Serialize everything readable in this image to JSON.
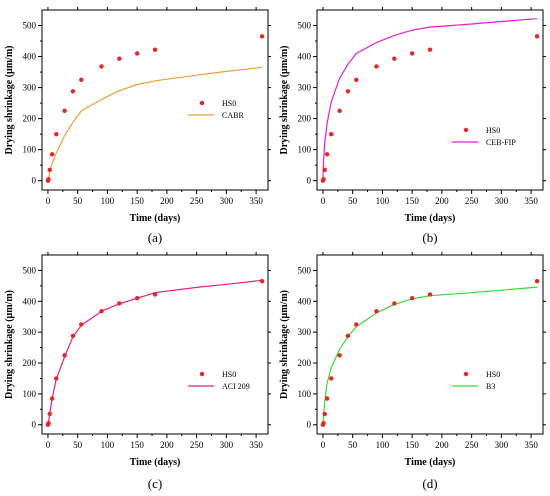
{
  "chart_data": [
    {
      "type": "scatter",
      "panel_label": "(a)",
      "xlabel": "Time (days)",
      "ylabel": "Drying shrinkage (μm/m)",
      "xlim": [
        -10,
        370
      ],
      "ylim": [
        -30,
        550
      ],
      "xticks": [
        0,
        50,
        100,
        150,
        200,
        250,
        300,
        350
      ],
      "yticks": [
        0,
        100,
        200,
        300,
        400,
        500
      ],
      "legend_position": "center-right",
      "series": [
        {
          "name": "HS0",
          "kind": "scatter",
          "color": "#ee2222",
          "x": [
            0,
            1,
            3,
            7,
            14,
            28,
            42,
            56,
            90,
            120,
            150,
            180,
            360
          ],
          "y": [
            0,
            5,
            35,
            85,
            150,
            225,
            288,
            325,
            368,
            393,
            410,
            422,
            465
          ]
        },
        {
          "name": "CABR",
          "kind": "line",
          "color": "#f0a030",
          "x": [
            0,
            3,
            7,
            14,
            28,
            42,
            56,
            90,
            120,
            150,
            180,
            250,
            300,
            360
          ],
          "y": [
            0,
            25,
            55,
            90,
            145,
            188,
            225,
            262,
            290,
            310,
            322,
            340,
            352,
            365
          ]
        }
      ]
    },
    {
      "type": "scatter",
      "panel_label": "(b)",
      "xlabel": "Time (days)",
      "ylabel": "Drying shrinkage (μm/m)",
      "xlim": [
        -10,
        370
      ],
      "ylim": [
        -30,
        550
      ],
      "xticks": [
        0,
        50,
        100,
        150,
        200,
        250,
        300,
        350
      ],
      "yticks": [
        0,
        100,
        200,
        300,
        400,
        500
      ],
      "legend_position": "center-right",
      "series": [
        {
          "name": "HS0",
          "kind": "scatter",
          "color": "#ee2222",
          "x": [
            0,
            1,
            3,
            7,
            14,
            28,
            42,
            56,
            90,
            120,
            150,
            180,
            360
          ],
          "y": [
            0,
            5,
            35,
            85,
            150,
            225,
            288,
            325,
            368,
            393,
            410,
            422,
            465
          ]
        },
        {
          "name": "CEB-FIP",
          "kind": "line",
          "color": "#e020e0",
          "x": [
            0,
            1,
            3,
            7,
            14,
            28,
            42,
            56,
            90,
            120,
            150,
            180,
            250,
            300,
            360
          ],
          "y": [
            0,
            60,
            120,
            185,
            255,
            330,
            375,
            410,
            445,
            468,
            485,
            495,
            505,
            513,
            522
          ]
        }
      ]
    },
    {
      "type": "scatter",
      "panel_label": "(c)",
      "xlabel": "Time (days)",
      "ylabel": "Drying shrinkage (μm/m)",
      "xlim": [
        -10,
        370
      ],
      "ylim": [
        -30,
        550
      ],
      "xticks": [
        0,
        50,
        100,
        150,
        200,
        250,
        300,
        350
      ],
      "yticks": [
        0,
        100,
        200,
        300,
        400,
        500
      ],
      "legend_position": "lower-center-right",
      "series": [
        {
          "name": "HS0",
          "kind": "scatter",
          "color": "#ee2222",
          "x": [
            0,
            1,
            3,
            7,
            14,
            28,
            42,
            56,
            90,
            120,
            150,
            180,
            360
          ],
          "y": [
            0,
            5,
            35,
            85,
            150,
            225,
            288,
            325,
            368,
            393,
            410,
            422,
            465
          ]
        },
        {
          "name": "ACI 209",
          "kind": "line",
          "color": "#e0208a",
          "x": [
            0,
            1,
            3,
            7,
            14,
            28,
            42,
            56,
            90,
            120,
            150,
            180,
            250,
            300,
            360
          ],
          "y": [
            0,
            8,
            35,
            85,
            148,
            220,
            285,
            322,
            368,
            392,
            410,
            428,
            445,
            455,
            468
          ]
        }
      ]
    },
    {
      "type": "scatter",
      "panel_label": "(d)",
      "xlabel": "Time (days)",
      "ylabel": "Drying shrinkage (μm/m)",
      "xlim": [
        -10,
        370
      ],
      "ylim": [
        -30,
        550
      ],
      "xticks": [
        0,
        50,
        100,
        150,
        200,
        250,
        300,
        350
      ],
      "yticks": [
        0,
        100,
        200,
        300,
        400,
        500
      ],
      "legend_position": "lower-center-right",
      "series": [
        {
          "name": "HS0",
          "kind": "scatter",
          "color": "#ee2222",
          "x": [
            0,
            1,
            3,
            7,
            14,
            28,
            42,
            56,
            90,
            120,
            150,
            180,
            360
          ],
          "y": [
            0,
            5,
            35,
            85,
            150,
            225,
            288,
            325,
            368,
            393,
            410,
            422,
            465
          ]
        },
        {
          "name": "B3",
          "kind": "line",
          "color": "#33dd33",
          "x": [
            0,
            1,
            3,
            7,
            14,
            28,
            42,
            56,
            90,
            120,
            150,
            180,
            250,
            300,
            360
          ],
          "y": [
            0,
            25,
            75,
            135,
            185,
            245,
            285,
            318,
            362,
            390,
            408,
            418,
            428,
            436,
            446
          ]
        }
      ]
    }
  ]
}
